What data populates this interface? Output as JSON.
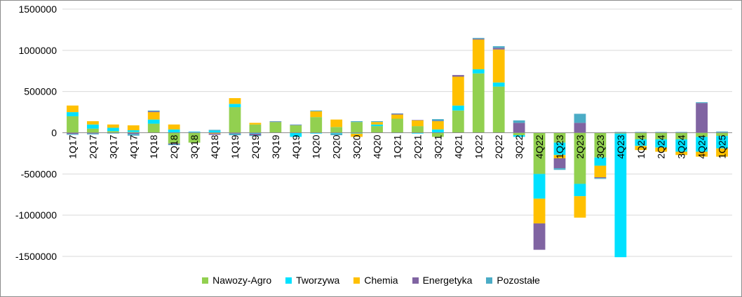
{
  "chart_data": {
    "type": "bar",
    "stacked": true,
    "ylim": [
      -1500000,
      1500000
    ],
    "yticks": [
      -1500000,
      -1000000,
      -500000,
      0,
      500000,
      1000000,
      1500000
    ],
    "ytick_labels": [
      "-1500000",
      "-1000000",
      "-500000",
      "0",
      "500000",
      "1000000",
      "1500000"
    ],
    "grid": "horizontal",
    "legend_position": "bottom",
    "categories": [
      "1Q17",
      "2Q17",
      "3Q17",
      "4Q17",
      "1Q18",
      "2Q18",
      "3Q18",
      "4Q18",
      "1Q19",
      "2Q19",
      "3Q19",
      "4Q19",
      "1Q20",
      "2Q20",
      "3Q20",
      "4Q20",
      "1Q21",
      "2Q21",
      "3Q21",
      "4Q21",
      "1Q22",
      "2Q22",
      "3Q22",
      "4Q22",
      "1Q23",
      "2Q23",
      "3Q23",
      "4Q23",
      "1Q24",
      "2Q24",
      "3Q24",
      "4Q24",
      "1Q25"
    ],
    "series": [
      {
        "name": "Nawozy-Agro",
        "color": "#92D050",
        "values": [
          200000,
          50000,
          20000,
          10000,
          110000,
          -130000,
          -120000,
          5000,
          310000,
          100000,
          130000,
          90000,
          190000,
          70000,
          130000,
          80000,
          170000,
          80000,
          -50000,
          270000,
          720000,
          560000,
          -30000,
          -500000,
          -120000,
          -620000,
          -300000,
          -10000,
          -80000,
          -80000,
          -80000,
          -50000,
          -40000
        ]
      },
      {
        "name": "Tworzywa",
        "color": "#00E1FF",
        "values": [
          50000,
          50000,
          40000,
          20000,
          50000,
          40000,
          10000,
          20000,
          40000,
          -10000,
          0,
          -50000,
          -10000,
          -10000,
          -10000,
          20000,
          -5000,
          -10000,
          40000,
          60000,
          50000,
          50000,
          -20000,
          -300000,
          -150000,
          -150000,
          -100000,
          -1500000,
          -80000,
          -100000,
          -150000,
          -180000,
          -150000
        ]
      },
      {
        "name": "Chemia",
        "color": "#FFC000",
        "values": [
          80000,
          40000,
          40000,
          60000,
          90000,
          60000,
          0,
          -10000,
          70000,
          20000,
          0,
          0,
          70000,
          90000,
          -40000,
          30000,
          50000,
          70000,
          100000,
          350000,
          360000,
          400000,
          0,
          -300000,
          -40000,
          -260000,
          -140000,
          0,
          -50000,
          -50000,
          -40000,
          -60000,
          -100000
        ]
      },
      {
        "name": "Energetyka",
        "color": "#8064A2",
        "values": [
          -15000,
          -10000,
          -5000,
          -15000,
          10000,
          -10000,
          0,
          -15000,
          -10000,
          -20000,
          5000,
          5000,
          0,
          0,
          0,
          0,
          10000,
          5000,
          5000,
          20000,
          10000,
          20000,
          120000,
          -320000,
          -120000,
          120000,
          -10000,
          5000,
          5000,
          5000,
          5000,
          360000,
          5000
        ]
      },
      {
        "name": "Pozostałe",
        "color": "#4BACC6",
        "values": [
          -10000,
          -10000,
          -5000,
          -20000,
          10000,
          -10000,
          5000,
          10000,
          -20000,
          -10000,
          5000,
          5000,
          10000,
          -20000,
          10000,
          10000,
          5000,
          0,
          20000,
          0,
          10000,
          20000,
          30000,
          0,
          -20000,
          110000,
          -10000,
          5000,
          5000,
          5000,
          5000,
          10000,
          10000
        ]
      }
    ]
  }
}
